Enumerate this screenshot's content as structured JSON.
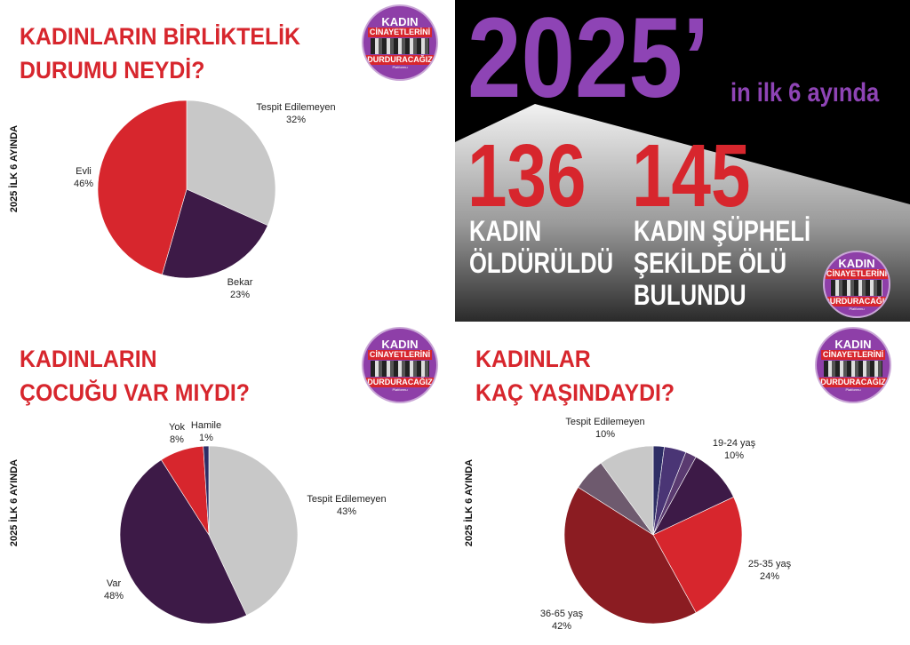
{
  "colors": {
    "red": "#d7262d",
    "dark_purple": "#3d1a47",
    "grey": "#c8c8c8",
    "purple": "#8e44b5",
    "dark_red": "#8b1c22"
  },
  "side_label": "2025 İLK 6 AYINDA",
  "logo": {
    "line1": "KADIN",
    "line2": "CİNAYETLERİNİ",
    "line3": "DURDURACAĞIZ",
    "line4": "Platformu"
  },
  "headline": {
    "year": "2025’",
    "suffix": "in ilk 6 ayında",
    "stat1_number": "136",
    "stat1_line1": "KADIN",
    "stat1_line2": "ÖLDÜRÜLDÜ",
    "stat2_number": "145",
    "stat2_line1": "KADIN ŞÜPHELİ",
    "stat2_line2": "ŞEKİLDE ÖLÜ",
    "stat2_line3": "BULUNDU"
  },
  "chart_data": [
    {
      "type": "pie",
      "title": "KADINLARIN BİRLİKTELİK DURUMU NEYDİ?",
      "title_line1": "KADINLARIN BİRLİKTELİK",
      "title_line2": "DURUMU NEYDİ?",
      "slices": [
        {
          "name": "Tespit Edilemeyen",
          "value": 32,
          "label": "32%",
          "color": "#c8c8c8"
        },
        {
          "name": "Bekar",
          "value": 23,
          "label": "23%",
          "color": "#3d1a47"
        },
        {
          "name": "Evli",
          "value": 46,
          "label": "46%",
          "color": "#d7262d"
        }
      ]
    },
    {
      "type": "pie",
      "title": "KADINLARIN ÇOCUĞU VAR MIYDI?",
      "title_line1": "KADINLARIN",
      "title_line2": "ÇOCUĞU VAR MIYDI?",
      "slices": [
        {
          "name": "Tespit Edilemeyen",
          "value": 43,
          "label": "43%",
          "color": "#c8c8c8"
        },
        {
          "name": "Var",
          "value": 48,
          "label": "48%",
          "color": "#3d1a47"
        },
        {
          "name": "Yok",
          "value": 8,
          "label": "8%",
          "color": "#d7262d"
        },
        {
          "name": "Hamile",
          "value": 1,
          "label": "1%",
          "color": "#2e2e66"
        }
      ]
    },
    {
      "type": "pie",
      "title": "KADINLAR KAÇ YAŞINDAYDI?",
      "title_line1": "KADINLAR",
      "title_line2": "KAÇ YAŞINDAYDI?",
      "slices": [
        {
          "name": "",
          "value": 2,
          "label": "",
          "color": "#2e2e66"
        },
        {
          "name": "",
          "value": 4,
          "label": "",
          "color": "#4a3575"
        },
        {
          "name": "",
          "value": 2,
          "label": "",
          "color": "#5a3a70"
        },
        {
          "name": "19-24 yaş",
          "value": 10,
          "label": "10%",
          "color": "#3d1a47"
        },
        {
          "name": "25-35 yaş",
          "value": 24,
          "label": "24%",
          "color": "#d7262d"
        },
        {
          "name": "36-65 yaş",
          "value": 42,
          "label": "42%",
          "color": "#8b1c22"
        },
        {
          "name": "",
          "value": 6,
          "label": "",
          "color": "#6e5a6e"
        },
        {
          "name": "Tespit Edilemeyen",
          "value": 10,
          "label": "10%",
          "color": "#c8c8c8"
        }
      ]
    }
  ]
}
